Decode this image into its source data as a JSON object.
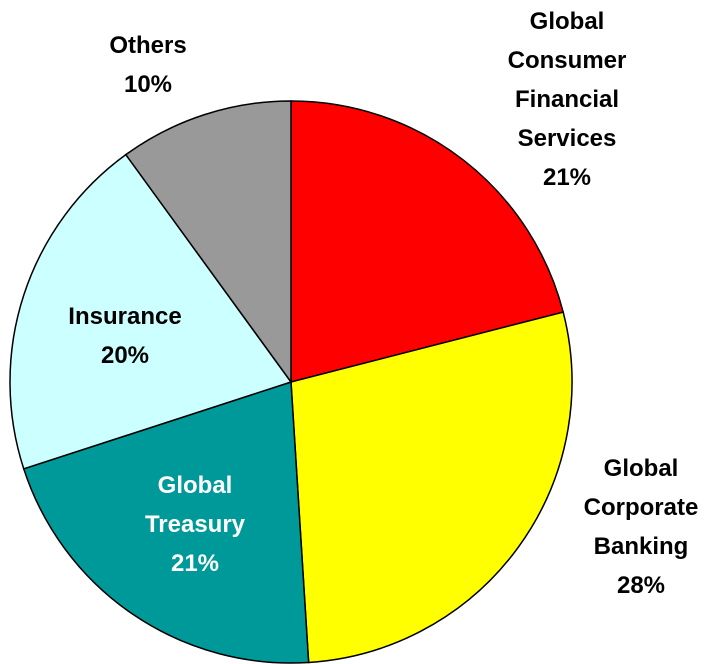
{
  "chart_data": {
    "type": "pie",
    "categories": [
      "Global Consumer Financial Services",
      "Global Corporate Banking",
      "Global Treasury",
      "Insurance",
      "Others"
    ],
    "values": [
      21,
      28,
      21,
      20,
      10
    ],
    "value_labels": [
      "21%",
      "28%",
      "21%",
      "20%",
      "10%"
    ],
    "colors": [
      "#ff0000",
      "#ffff00",
      "#009999",
      "#ccffff",
      "#999999"
    ]
  }
}
